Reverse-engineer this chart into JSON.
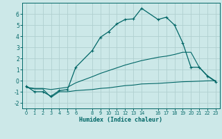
{
  "xlabel": "Humidex (Indice chaleur)",
  "ylabel": "",
  "bg_color": "#cce8e8",
  "grid_color": "#b0d0d0",
  "line_color": "#006666",
  "xlim": [
    -0.5,
    23.5
  ],
  "ylim": [
    -2.5,
    7.0
  ],
  "xticks": [
    0,
    1,
    2,
    3,
    4,
    5,
    6,
    8,
    9,
    10,
    11,
    12,
    13,
    14,
    16,
    17,
    18,
    19,
    20,
    21,
    22,
    23
  ],
  "yticks": [
    -2,
    -1,
    0,
    1,
    2,
    3,
    4,
    5,
    6
  ],
  "line1_x": [
    0,
    1,
    2,
    3,
    4,
    5,
    6,
    8,
    9,
    10,
    11,
    12,
    13,
    14,
    16,
    17,
    18,
    19,
    20,
    21,
    22,
    23
  ],
  "line1_y": [
    -0.5,
    -1.0,
    -1.0,
    -1.4,
    -0.9,
    -0.8,
    1.2,
    2.7,
    3.9,
    4.4,
    5.1,
    5.5,
    5.55,
    6.5,
    5.5,
    5.7,
    5.0,
    3.4,
    1.2,
    1.2,
    0.4,
    -0.1
  ],
  "line2_x": [
    0,
    1,
    2,
    3,
    4,
    5,
    6,
    8,
    9,
    10,
    11,
    12,
    13,
    14,
    16,
    17,
    18,
    19,
    20,
    21,
    22,
    23
  ],
  "line2_y": [
    -0.6,
    -0.7,
    -0.7,
    -0.8,
    -0.7,
    -0.6,
    -0.2,
    0.35,
    0.65,
    0.9,
    1.15,
    1.4,
    1.6,
    1.8,
    2.1,
    2.2,
    2.35,
    2.55,
    2.55,
    1.2,
    0.45,
    -0.05
  ],
  "line3_x": [
    0,
    1,
    2,
    3,
    4,
    5,
    6,
    8,
    9,
    10,
    11,
    12,
    13,
    14,
    16,
    17,
    18,
    19,
    20,
    21,
    22,
    23
  ],
  "line3_y": [
    -0.6,
    -0.75,
    -0.75,
    -1.5,
    -1.0,
    -1.0,
    -0.9,
    -0.8,
    -0.7,
    -0.65,
    -0.55,
    -0.45,
    -0.4,
    -0.3,
    -0.25,
    -0.2,
    -0.15,
    -0.1,
    -0.08,
    -0.05,
    -0.02,
    0.0
  ]
}
